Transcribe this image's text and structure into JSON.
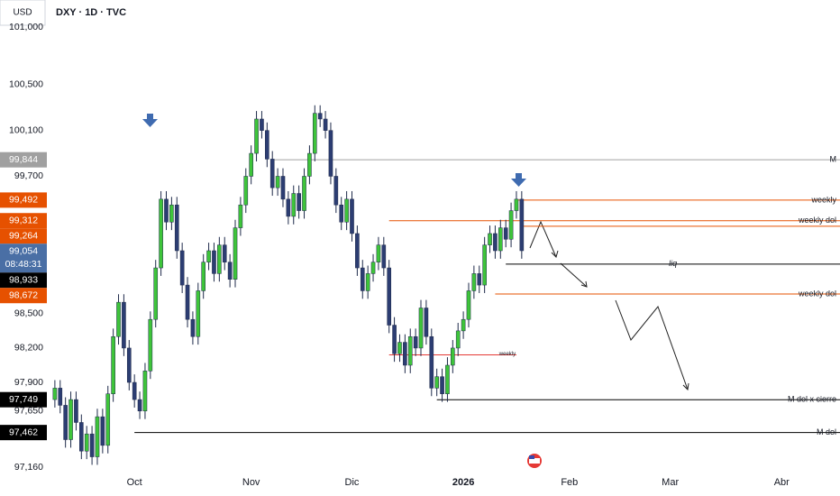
{
  "chart_data": {
    "type": "candlestick",
    "currency": "USD",
    "title": "DXY · 1D · TVC",
    "up_color": "#3ec43a",
    "down_color": "#2c3d72",
    "wick_color": "#1e2a4a",
    "xlim": [
      -1,
      148
    ],
    "ylim": [
      96.9,
      101.2
    ],
    "xticks": [
      {
        "value": 15,
        "label": "Oct"
      },
      {
        "value": 37,
        "label": "Nov"
      },
      {
        "value": 56,
        "label": "Dic"
      },
      {
        "value": 77,
        "label": "2026",
        "bold": true
      },
      {
        "value": 97,
        "label": "Feb"
      },
      {
        "value": 116,
        "label": "Mar"
      },
      {
        "value": 137,
        "label": "Abr"
      }
    ],
    "yticks": [
      {
        "value": 101.0,
        "label": "101,000"
      },
      {
        "value": 100.5,
        "label": "100,500"
      },
      {
        "value": 100.1,
        "label": "100,100"
      },
      {
        "value": 99.7,
        "label": "99,700"
      },
      {
        "value": 98.5,
        "label": "98,500"
      },
      {
        "value": 98.2,
        "label": "98,200"
      },
      {
        "value": 97.9,
        "label": "97,900"
      },
      {
        "value": 97.65,
        "label": "97,650"
      },
      {
        "value": 97.16,
        "label": "97,160"
      }
    ],
    "candles": [
      [
        97.75,
        97.92,
        97.68,
        97.85
      ],
      [
        97.85,
        97.92,
        97.63,
        97.7
      ],
      [
        97.7,
        97.77,
        97.33,
        97.4
      ],
      [
        97.4,
        97.82,
        97.33,
        97.75
      ],
      [
        97.75,
        97.82,
        97.48,
        97.55
      ],
      [
        97.55,
        97.62,
        97.23,
        97.3
      ],
      [
        97.3,
        97.52,
        97.23,
        97.45
      ],
      [
        97.45,
        97.52,
        97.18,
        97.25
      ],
      [
        97.25,
        97.67,
        97.18,
        97.6
      ],
      [
        97.6,
        97.67,
        97.28,
        97.35
      ],
      [
        97.35,
        97.87,
        97.28,
        97.8
      ],
      [
        97.8,
        98.37,
        97.73,
        98.3
      ],
      [
        98.3,
        98.67,
        98.23,
        98.6
      ],
      [
        98.6,
        98.67,
        98.13,
        98.2
      ],
      [
        98.2,
        98.27,
        97.83,
        97.9
      ],
      [
        97.9,
        97.97,
        97.68,
        97.75
      ],
      [
        97.75,
        97.82,
        97.58,
        97.65
      ],
      [
        97.65,
        98.07,
        97.58,
        98.0
      ],
      [
        98.0,
        98.52,
        97.93,
        98.45
      ],
      [
        98.45,
        98.97,
        98.38,
        98.9
      ],
      [
        98.9,
        99.57,
        98.83,
        99.5
      ],
      [
        99.5,
        99.57,
        99.23,
        99.3
      ],
      [
        99.3,
        99.52,
        99.23,
        99.45
      ],
      [
        99.45,
        99.52,
        98.98,
        99.05
      ],
      [
        99.05,
        99.12,
        98.68,
        98.75
      ],
      [
        98.75,
        98.82,
        98.38,
        98.45
      ],
      [
        98.45,
        98.52,
        98.23,
        98.3
      ],
      [
        98.3,
        98.77,
        98.23,
        98.7
      ],
      [
        98.7,
        99.02,
        98.63,
        98.95
      ],
      [
        98.95,
        99.12,
        98.88,
        99.05
      ],
      [
        99.05,
        99.12,
        98.78,
        98.85
      ],
      [
        98.85,
        99.17,
        98.78,
        99.1
      ],
      [
        99.1,
        99.17,
        98.88,
        98.95
      ],
      [
        98.95,
        99.02,
        98.73,
        98.8
      ],
      [
        98.8,
        99.32,
        98.73,
        99.25
      ],
      [
        99.25,
        99.52,
        99.18,
        99.45
      ],
      [
        99.45,
        99.77,
        99.38,
        99.7
      ],
      [
        99.7,
        99.97,
        99.63,
        99.9
      ],
      [
        99.9,
        100.27,
        99.83,
        100.2
      ],
      [
        100.2,
        100.27,
        100.03,
        100.1
      ],
      [
        100.1,
        100.17,
        99.78,
        99.85
      ],
      [
        99.85,
        99.92,
        99.53,
        99.6
      ],
      [
        99.6,
        99.77,
        99.53,
        99.7
      ],
      [
        99.7,
        99.77,
        99.43,
        99.5
      ],
      [
        99.5,
        99.57,
        99.28,
        99.35
      ],
      [
        99.35,
        99.62,
        99.28,
        99.55
      ],
      [
        99.55,
        99.62,
        99.33,
        99.4
      ],
      [
        99.4,
        99.77,
        99.33,
        99.7
      ],
      [
        99.7,
        99.97,
        99.63,
        99.9
      ],
      [
        99.9,
        100.32,
        99.83,
        100.25
      ],
      [
        100.25,
        100.32,
        100.13,
        100.2
      ],
      [
        100.2,
        100.27,
        100.03,
        100.1
      ],
      [
        100.1,
        100.17,
        99.63,
        99.7
      ],
      [
        99.7,
        99.77,
        99.38,
        99.45
      ],
      [
        99.45,
        99.52,
        99.23,
        99.3
      ],
      [
        99.3,
        99.57,
        99.23,
        99.5
      ],
      [
        99.5,
        99.57,
        99.13,
        99.2
      ],
      [
        99.2,
        99.27,
        98.83,
        98.9
      ],
      [
        98.9,
        98.97,
        98.63,
        98.7
      ],
      [
        98.7,
        98.92,
        98.63,
        98.85
      ],
      [
        98.85,
        99.02,
        98.78,
        98.95
      ],
      [
        98.95,
        99.17,
        98.88,
        99.1
      ],
      [
        99.1,
        99.17,
        98.83,
        98.9
      ],
      [
        98.9,
        98.97,
        98.33,
        98.4
      ],
      [
        98.4,
        98.47,
        98.08,
        98.15
      ],
      [
        98.15,
        98.32,
        98.08,
        98.25
      ],
      [
        98.25,
        98.32,
        97.98,
        98.05
      ],
      [
        98.05,
        98.37,
        97.98,
        98.3
      ],
      [
        98.3,
        98.37,
        98.13,
        98.2
      ],
      [
        98.2,
        98.62,
        98.13,
        98.55
      ],
      [
        98.55,
        98.62,
        98.23,
        98.3
      ],
      [
        98.3,
        98.37,
        97.78,
        97.85
      ],
      [
        97.85,
        98.02,
        97.78,
        97.95
      ],
      [
        97.95,
        98.02,
        97.73,
        97.8
      ],
      [
        97.8,
        98.12,
        97.73,
        98.05
      ],
      [
        98.05,
        98.27,
        97.98,
        98.2
      ],
      [
        98.2,
        98.42,
        98.13,
        98.35
      ],
      [
        98.35,
        98.52,
        98.28,
        98.45
      ],
      [
        98.45,
        98.77,
        98.38,
        98.7
      ],
      [
        98.7,
        98.92,
        98.63,
        98.85
      ],
      [
        98.85,
        98.92,
        98.68,
        98.75
      ],
      [
        98.75,
        99.17,
        98.68,
        99.1
      ],
      [
        99.1,
        99.27,
        99.03,
        99.2
      ],
      [
        99.2,
        99.27,
        98.98,
        99.05
      ],
      [
        99.05,
        99.32,
        98.98,
        99.25
      ],
      [
        99.25,
        99.32,
        99.08,
        99.15
      ],
      [
        99.15,
        99.47,
        99.08,
        99.4
      ],
      [
        99.4,
        99.57,
        99.33,
        99.5
      ],
      [
        99.5,
        99.57,
        98.98,
        99.05
      ]
    ],
    "levels": [
      {
        "value": 99.844,
        "label": "99,844",
        "name": "M",
        "color": "#a0a0a0",
        "start": 41
      },
      {
        "value": 99.492,
        "label": "99,492",
        "name": "weekly",
        "color": "#e65100",
        "start": 87
      },
      {
        "value": 99.312,
        "label": "99,312",
        "name": "weekly dol",
        "color": "#e65100",
        "start": 63
      },
      {
        "value": 99.264,
        "label": "99,264",
        "color": "#e65100",
        "start": 88
      },
      {
        "value": 98.933,
        "label": "98,933",
        "name": "liq",
        "name_color": "#e53935",
        "name_align": "center",
        "color": "#000000",
        "start": 85
      },
      {
        "value": 98.672,
        "label": "98,672",
        "name": "weekly dol",
        "color": "#e65100",
        "start": 83
      },
      {
        "value": 97.749,
        "label": "97,749",
        "name": "M dol x cierre",
        "color": "#000000",
        "start": 72
      },
      {
        "value": 97.462,
        "label": "97,462",
        "name": "M dol",
        "color": "#000000",
        "start": 15
      }
    ],
    "minor_level": {
      "value": 98.14,
      "name": "weekly",
      "color": "#e53935",
      "start": 63,
      "end": 87
    },
    "last_price": {
      "value": 99.054,
      "label": "99,054",
      "countdown": "08:48:31",
      "color": "#4a6fa5"
    }
  }
}
